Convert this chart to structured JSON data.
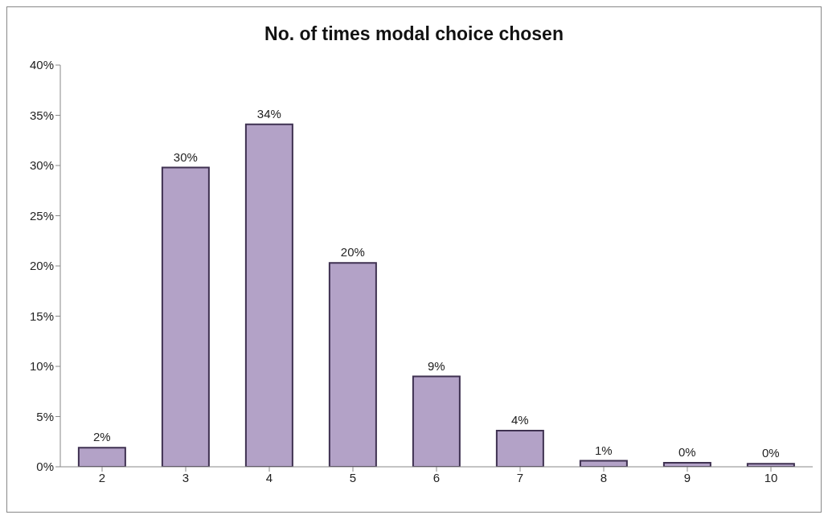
{
  "chart_data": {
    "type": "bar",
    "title": "No. of times modal choice chosen",
    "categories": [
      "2",
      "3",
      "4",
      "5",
      "6",
      "7",
      "8",
      "9",
      "10"
    ],
    "values": [
      1.9,
      29.8,
      34.1,
      20.3,
      9.0,
      3.6,
      0.6,
      0.4,
      0.3
    ],
    "value_labels": [
      "2%",
      "30%",
      "34%",
      "20%",
      "9%",
      "4%",
      "1%",
      "0%",
      "0%"
    ],
    "color": "#b3a2c7",
    "ylim": [
      0,
      40
    ],
    "yticks": [
      {
        "value": 0,
        "label": "0%"
      },
      {
        "value": 5,
        "label": "5%"
      },
      {
        "value": 10,
        "label": "10%"
      },
      {
        "value": 15,
        "label": "15%"
      },
      {
        "value": 20,
        "label": "20%"
      },
      {
        "value": 25,
        "label": "25%"
      },
      {
        "value": 30,
        "label": "30%"
      },
      {
        "value": 35,
        "label": "35%"
      },
      {
        "value": 40,
        "label": "40%"
      }
    ],
    "grid": false,
    "legend": false
  }
}
